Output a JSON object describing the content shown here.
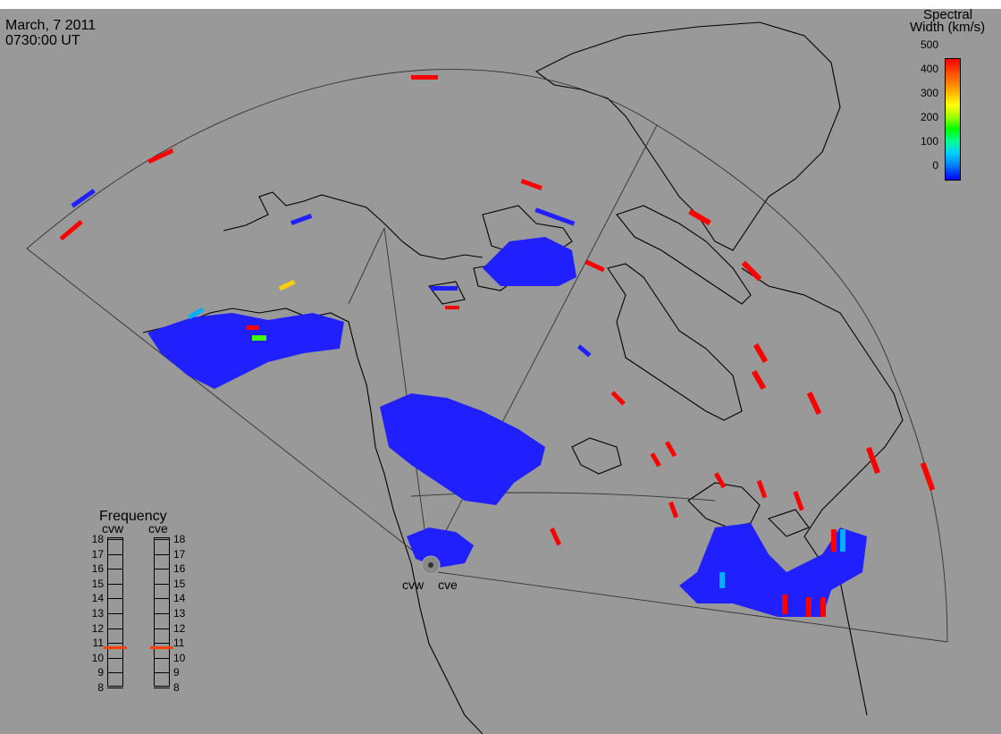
{
  "header": {
    "date": "March, 7 2011",
    "time": "0730:00 UT"
  },
  "colorbar": {
    "title_line1": "Spectral",
    "title_line2": "Width (km/s)",
    "ticks": [
      "500",
      "400",
      "300",
      "200",
      "100",
      "0"
    ],
    "colors": [
      "#ff0000",
      "#ffa000",
      "#ffff00",
      "#00ff00",
      "#00d0ff",
      "#0000ff"
    ]
  },
  "frequency": {
    "title": "Frequency",
    "radar_a": "cvw",
    "radar_b": "cve",
    "scale": [
      "18",
      "17",
      "16",
      "15",
      "14",
      "13",
      "12",
      "11",
      "10",
      "9",
      "8"
    ],
    "selected_mhz": 10.7
  },
  "radars": {
    "west_label": "cvw",
    "east_label": "cve"
  },
  "colors": {
    "background": "#999999",
    "scatter": "#2020ff",
    "high_width": "#ff0000"
  }
}
